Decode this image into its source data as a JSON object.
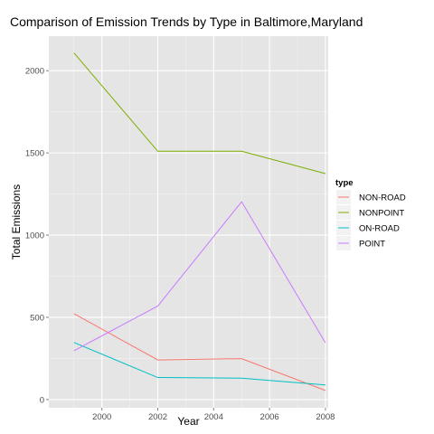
{
  "chart_data": {
    "type": "line",
    "title": "Comparison of Emission Trends by Type in Baltimore,Maryland",
    "xlabel": "Year",
    "ylabel": "Total Emissions",
    "x": [
      1999,
      2002,
      2005,
      2008
    ],
    "xlim": [
      1998.1,
      2008.1
    ],
    "ylim": [
      -50,
      2210
    ],
    "x_ticks": [
      2000,
      2002,
      2004,
      2006,
      2008
    ],
    "x_tick_labels": [
      "2000",
      "2002",
      "2004",
      "2006",
      "2008"
    ],
    "y_ticks": [
      0,
      500,
      1000,
      1500,
      2000
    ],
    "y_tick_labels": [
      "0",
      "500",
      "1000",
      "1500",
      "2000"
    ],
    "grid": true,
    "legend": {
      "title": "type",
      "placement": "right"
    },
    "series": [
      {
        "name": "NON-ROAD",
        "color": "#F8766D",
        "values": [
          522,
          241,
          249,
          55
        ]
      },
      {
        "name": "NONPOINT",
        "color": "#7CAE00",
        "values": [
          2108,
          1510,
          1510,
          1374
        ]
      },
      {
        "name": "ON-ROAD",
        "color": "#00BFC4",
        "values": [
          347,
          134,
          130,
          89
        ]
      },
      {
        "name": "POINT",
        "color": "#C77CFF",
        "values": [
          297,
          569,
          1203,
          345
        ]
      }
    ]
  }
}
